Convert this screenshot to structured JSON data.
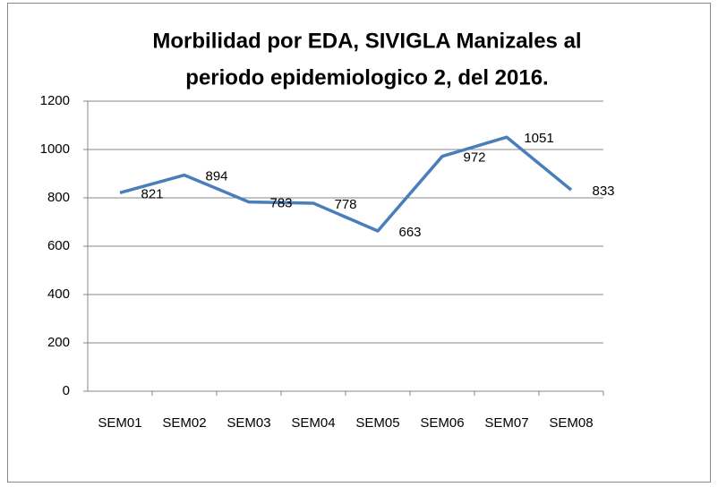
{
  "chart_data": {
    "type": "line",
    "title": [
      "Morbilidad  por EDA, SIVIGLA Manizales al",
      "periodo epidemiologico 2, del 2016."
    ],
    "categories": [
      "SEM01",
      "SEM02",
      "SEM03",
      "SEM04",
      "SEM05",
      "SEM06",
      "SEM07",
      "SEM08"
    ],
    "series": [
      {
        "color": "#4a7ebb",
        "values": [
          821,
          894,
          783,
          778,
          663,
          972,
          1051,
          833
        ]
      }
    ],
    "ylim": [
      0,
      1200
    ],
    "yticks": [
      0,
      200,
      400,
      600,
      800,
      1000,
      1200
    ],
    "grid": true,
    "data_labels": true
  }
}
